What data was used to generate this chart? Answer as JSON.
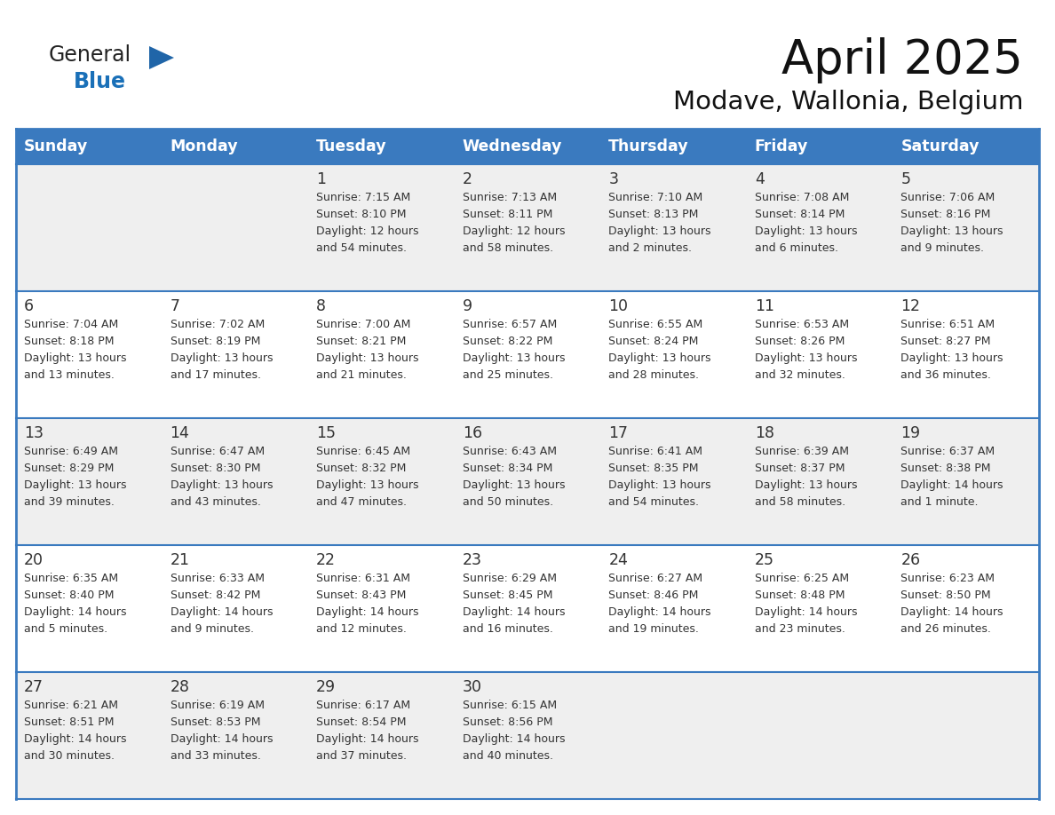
{
  "title": "April 2025",
  "subtitle": "Modave, Wallonia, Belgium",
  "header_bg": "#3a7abf",
  "header_text_color": "#ffffff",
  "cell_bg_light": "#efefef",
  "cell_bg_white": "#ffffff",
  "border_color": "#3a7abf",
  "text_color": "#333333",
  "days_of_week": [
    "Sunday",
    "Monday",
    "Tuesday",
    "Wednesday",
    "Thursday",
    "Friday",
    "Saturday"
  ],
  "weeks": [
    [
      {
        "day": "",
        "sunrise": "",
        "sunset": "",
        "daylight": ""
      },
      {
        "day": "",
        "sunrise": "",
        "sunset": "",
        "daylight": ""
      },
      {
        "day": "1",
        "sunrise": "Sunrise: 7:15 AM",
        "sunset": "Sunset: 8:10 PM",
        "daylight": "Daylight: 12 hours\nand 54 minutes."
      },
      {
        "day": "2",
        "sunrise": "Sunrise: 7:13 AM",
        "sunset": "Sunset: 8:11 PM",
        "daylight": "Daylight: 12 hours\nand 58 minutes."
      },
      {
        "day": "3",
        "sunrise": "Sunrise: 7:10 AM",
        "sunset": "Sunset: 8:13 PM",
        "daylight": "Daylight: 13 hours\nand 2 minutes."
      },
      {
        "day": "4",
        "sunrise": "Sunrise: 7:08 AM",
        "sunset": "Sunset: 8:14 PM",
        "daylight": "Daylight: 13 hours\nand 6 minutes."
      },
      {
        "day": "5",
        "sunrise": "Sunrise: 7:06 AM",
        "sunset": "Sunset: 8:16 PM",
        "daylight": "Daylight: 13 hours\nand 9 minutes."
      }
    ],
    [
      {
        "day": "6",
        "sunrise": "Sunrise: 7:04 AM",
        "sunset": "Sunset: 8:18 PM",
        "daylight": "Daylight: 13 hours\nand 13 minutes."
      },
      {
        "day": "7",
        "sunrise": "Sunrise: 7:02 AM",
        "sunset": "Sunset: 8:19 PM",
        "daylight": "Daylight: 13 hours\nand 17 minutes."
      },
      {
        "day": "8",
        "sunrise": "Sunrise: 7:00 AM",
        "sunset": "Sunset: 8:21 PM",
        "daylight": "Daylight: 13 hours\nand 21 minutes."
      },
      {
        "day": "9",
        "sunrise": "Sunrise: 6:57 AM",
        "sunset": "Sunset: 8:22 PM",
        "daylight": "Daylight: 13 hours\nand 25 minutes."
      },
      {
        "day": "10",
        "sunrise": "Sunrise: 6:55 AM",
        "sunset": "Sunset: 8:24 PM",
        "daylight": "Daylight: 13 hours\nand 28 minutes."
      },
      {
        "day": "11",
        "sunrise": "Sunrise: 6:53 AM",
        "sunset": "Sunset: 8:26 PM",
        "daylight": "Daylight: 13 hours\nand 32 minutes."
      },
      {
        "day": "12",
        "sunrise": "Sunrise: 6:51 AM",
        "sunset": "Sunset: 8:27 PM",
        "daylight": "Daylight: 13 hours\nand 36 minutes."
      }
    ],
    [
      {
        "day": "13",
        "sunrise": "Sunrise: 6:49 AM",
        "sunset": "Sunset: 8:29 PM",
        "daylight": "Daylight: 13 hours\nand 39 minutes."
      },
      {
        "day": "14",
        "sunrise": "Sunrise: 6:47 AM",
        "sunset": "Sunset: 8:30 PM",
        "daylight": "Daylight: 13 hours\nand 43 minutes."
      },
      {
        "day": "15",
        "sunrise": "Sunrise: 6:45 AM",
        "sunset": "Sunset: 8:32 PM",
        "daylight": "Daylight: 13 hours\nand 47 minutes."
      },
      {
        "day": "16",
        "sunrise": "Sunrise: 6:43 AM",
        "sunset": "Sunset: 8:34 PM",
        "daylight": "Daylight: 13 hours\nand 50 minutes."
      },
      {
        "day": "17",
        "sunrise": "Sunrise: 6:41 AM",
        "sunset": "Sunset: 8:35 PM",
        "daylight": "Daylight: 13 hours\nand 54 minutes."
      },
      {
        "day": "18",
        "sunrise": "Sunrise: 6:39 AM",
        "sunset": "Sunset: 8:37 PM",
        "daylight": "Daylight: 13 hours\nand 58 minutes."
      },
      {
        "day": "19",
        "sunrise": "Sunrise: 6:37 AM",
        "sunset": "Sunset: 8:38 PM",
        "daylight": "Daylight: 14 hours\nand 1 minute."
      }
    ],
    [
      {
        "day": "20",
        "sunrise": "Sunrise: 6:35 AM",
        "sunset": "Sunset: 8:40 PM",
        "daylight": "Daylight: 14 hours\nand 5 minutes."
      },
      {
        "day": "21",
        "sunrise": "Sunrise: 6:33 AM",
        "sunset": "Sunset: 8:42 PM",
        "daylight": "Daylight: 14 hours\nand 9 minutes."
      },
      {
        "day": "22",
        "sunrise": "Sunrise: 6:31 AM",
        "sunset": "Sunset: 8:43 PM",
        "daylight": "Daylight: 14 hours\nand 12 minutes."
      },
      {
        "day": "23",
        "sunrise": "Sunrise: 6:29 AM",
        "sunset": "Sunset: 8:45 PM",
        "daylight": "Daylight: 14 hours\nand 16 minutes."
      },
      {
        "day": "24",
        "sunrise": "Sunrise: 6:27 AM",
        "sunset": "Sunset: 8:46 PM",
        "daylight": "Daylight: 14 hours\nand 19 minutes."
      },
      {
        "day": "25",
        "sunrise": "Sunrise: 6:25 AM",
        "sunset": "Sunset: 8:48 PM",
        "daylight": "Daylight: 14 hours\nand 23 minutes."
      },
      {
        "day": "26",
        "sunrise": "Sunrise: 6:23 AM",
        "sunset": "Sunset: 8:50 PM",
        "daylight": "Daylight: 14 hours\nand 26 minutes."
      }
    ],
    [
      {
        "day": "27",
        "sunrise": "Sunrise: 6:21 AM",
        "sunset": "Sunset: 8:51 PM",
        "daylight": "Daylight: 14 hours\nand 30 minutes."
      },
      {
        "day": "28",
        "sunrise": "Sunrise: 6:19 AM",
        "sunset": "Sunset: 8:53 PM",
        "daylight": "Daylight: 14 hours\nand 33 minutes."
      },
      {
        "day": "29",
        "sunrise": "Sunrise: 6:17 AM",
        "sunset": "Sunset: 8:54 PM",
        "daylight": "Daylight: 14 hours\nand 37 minutes."
      },
      {
        "day": "30",
        "sunrise": "Sunrise: 6:15 AM",
        "sunset": "Sunset: 8:56 PM",
        "daylight": "Daylight: 14 hours\nand 40 minutes."
      },
      {
        "day": "",
        "sunrise": "",
        "sunset": "",
        "daylight": ""
      },
      {
        "day": "",
        "sunrise": "",
        "sunset": "",
        "daylight": ""
      },
      {
        "day": "",
        "sunrise": "",
        "sunset": "",
        "daylight": ""
      }
    ]
  ],
  "logo_text_general": "General",
  "logo_text_blue": "Blue",
  "general_color": "#222222",
  "blue_color": "#1a70b8",
  "triangle_color": "#2065a8"
}
